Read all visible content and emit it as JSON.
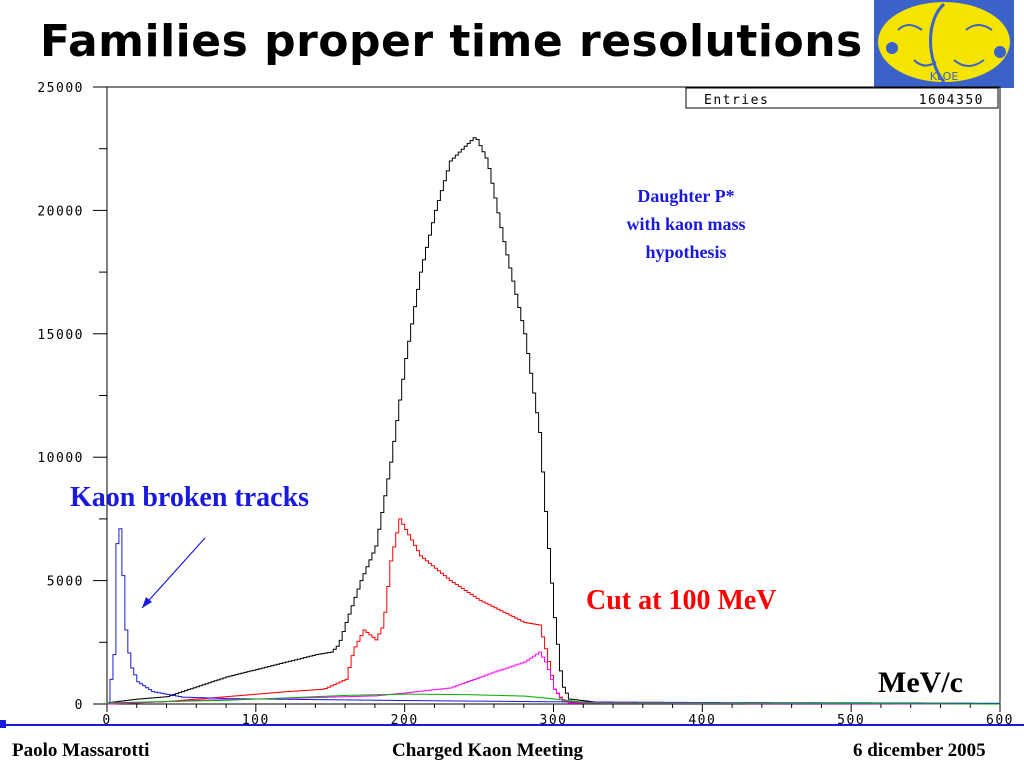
{
  "title": "Families proper time resolutions",
  "footer": {
    "author": "Paolo Massarotti",
    "meeting": "Charged Kaon Meeting",
    "date": "6 dicember 2005"
  },
  "annotations": {
    "kaon_broken": "Kaon broken tracks",
    "cut": "Cut at 100 MeV",
    "daughter_line1": "Daughter P*",
    "daughter_line2": "with kaon mass",
    "daughter_line3": "hypothesis",
    "units": "MeV/c"
  },
  "logo": {
    "text": "KLOE"
  },
  "colors": {
    "total": "#000000",
    "kaon_broken": "#1a1adf",
    "cut": "#ff0000",
    "magenta": "#ff00ff",
    "green": "#00b000",
    "annotation_blue": "#1a1adf",
    "logo_bg": "#3a62c8",
    "logo_yellow": "#f5e400"
  },
  "chart_data": {
    "type": "line",
    "stats": {
      "label": "Entries",
      "value": "1604350"
    },
    "xlim": [
      0,
      600
    ],
    "ylim": [
      0,
      25000
    ],
    "x_ticks": [
      "0",
      "100",
      "200",
      "300",
      "400",
      "500",
      "600"
    ],
    "y_ticks": [
      "0",
      "5000",
      "10000",
      "15000",
      "20000",
      "25000"
    ],
    "series": [
      {
        "color": "#000000",
        "points": [
          [
            0,
            50
          ],
          [
            20,
            200
          ],
          [
            40,
            300
          ],
          [
            60,
            700
          ],
          [
            80,
            1100
          ],
          [
            100,
            1400
          ],
          [
            120,
            1700
          ],
          [
            140,
            2000
          ],
          [
            150,
            2100
          ],
          [
            155,
            2400
          ],
          [
            160,
            3300
          ],
          [
            170,
            5000
          ],
          [
            180,
            6400
          ],
          [
            190,
            9800
          ],
          [
            200,
            14000
          ],
          [
            210,
            17500
          ],
          [
            220,
            20000
          ],
          [
            230,
            22000
          ],
          [
            240,
            22600
          ],
          [
            247,
            23000
          ],
          [
            255,
            22000
          ],
          [
            265,
            19000
          ],
          [
            280,
            15000
          ],
          [
            290,
            11000
          ],
          [
            295,
            7000
          ],
          [
            300,
            3500
          ],
          [
            305,
            800
          ],
          [
            310,
            200
          ],
          [
            330,
            60
          ],
          [
            400,
            30
          ],
          [
            600,
            0
          ]
        ]
      },
      {
        "color": "#ff0000",
        "points": [
          [
            0,
            0
          ],
          [
            40,
            100
          ],
          [
            80,
            300
          ],
          [
            120,
            500
          ],
          [
            145,
            600
          ],
          [
            160,
            1000
          ],
          [
            165,
            2200
          ],
          [
            172,
            3000
          ],
          [
            180,
            2600
          ],
          [
            185,
            3200
          ],
          [
            190,
            5800
          ],
          [
            196,
            7500
          ],
          [
            210,
            6000
          ],
          [
            230,
            5000
          ],
          [
            250,
            4200
          ],
          [
            280,
            3300
          ],
          [
            290,
            3200
          ],
          [
            295,
            2000
          ],
          [
            300,
            600
          ],
          [
            305,
            200
          ],
          [
            310,
            50
          ],
          [
            600,
            0
          ]
        ]
      },
      {
        "color": "#1a1adf",
        "points": [
          [
            0,
            0
          ],
          [
            4,
            2000
          ],
          [
            6,
            6500
          ],
          [
            8,
            7100
          ],
          [
            10,
            5200
          ],
          [
            12,
            3000
          ],
          [
            15,
            1600
          ],
          [
            20,
            900
          ],
          [
            30,
            500
          ],
          [
            50,
            280
          ],
          [
            80,
            220
          ],
          [
            120,
            190
          ],
          [
            200,
            140
          ],
          [
            300,
            90
          ],
          [
            400,
            60
          ],
          [
            600,
            30
          ]
        ]
      },
      {
        "color": "#ff00ff",
        "points": [
          [
            0,
            0
          ],
          [
            60,
            150
          ],
          [
            120,
            230
          ],
          [
            180,
            330
          ],
          [
            200,
            450
          ],
          [
            230,
            650
          ],
          [
            260,
            1300
          ],
          [
            280,
            1700
          ],
          [
            290,
            2100
          ],
          [
            295,
            1600
          ],
          [
            300,
            600
          ],
          [
            305,
            150
          ],
          [
            310,
            30
          ],
          [
            600,
            0
          ]
        ]
      },
      {
        "color": "#00b000",
        "points": [
          [
            0,
            50
          ],
          [
            80,
            150
          ],
          [
            160,
            350
          ],
          [
            200,
            400
          ],
          [
            240,
            380
          ],
          [
            280,
            320
          ],
          [
            300,
            200
          ],
          [
            320,
            60
          ],
          [
            600,
            0
          ]
        ]
      }
    ]
  }
}
